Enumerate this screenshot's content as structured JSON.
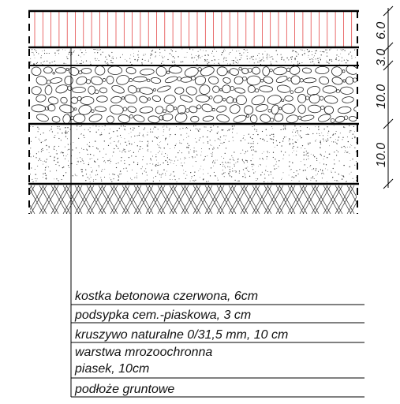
{
  "layers": [
    {
      "id": "paving",
      "label": "kostka betonowa czerwona, 6cm",
      "thickness": "6.0",
      "hatch_color": "#e03030"
    },
    {
      "id": "bedding",
      "label": "podsypka cem.-piaskowa, 3 cm",
      "thickness": "3.0"
    },
    {
      "id": "aggregate",
      "label": "kruszywo naturalne 0/31,5 mm, 10 cm",
      "thickness": "10.0"
    },
    {
      "id": "frost",
      "label_line1": "warstwa mrozoochronna",
      "label_line2": "piasek, 10cm",
      "thickness": "10.0"
    },
    {
      "id": "subsoil",
      "label": "podłoże gruntowe"
    }
  ]
}
